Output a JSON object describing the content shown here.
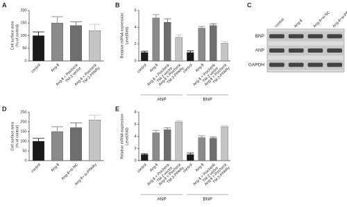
{
  "chart_data": [
    {
      "type": "bar",
      "panel": "A",
      "ylabel": [
        "Cell surface area",
        "(% of control)"
      ],
      "categories": [
        [
          "control"
        ],
        [
          "Ang-Ⅱ"
        ],
        [
          "Ang-Ⅱ + Psicheck",
          "TM-2 vector"
        ],
        [
          "Ang-Ⅱ + Psicheck",
          "TM-2-PPARγ"
        ]
      ],
      "colors": [
        "#1a1a1a",
        "#8a8a8a",
        "#6e6e6e",
        "#c4c4c4"
      ],
      "values": [
        100,
        150,
        140,
        120
      ],
      "errors": [
        15,
        25,
        15,
        25
      ],
      "ylim": [
        0,
        200
      ],
      "yticks": [
        0,
        50,
        100,
        150,
        200
      ]
    },
    {
      "type": "grouped-bar",
      "panel": "B",
      "ylabel": [
        "Relative mRNA expression",
        "Level(fold)"
      ],
      "categories": [
        [
          "control"
        ],
        [
          "Ang-Ⅱ"
        ],
        [
          "Ang-Ⅱ + Psicheck",
          "TM-2 vector"
        ],
        [
          "Ang-Ⅱ + Psicheck",
          "TM-2-PPARγ"
        ]
      ],
      "colors": [
        "#1a1a1a",
        "#8a8a8a",
        "#6e6e6e",
        "#c4c4c4"
      ],
      "series": [
        {
          "name": "ANP",
          "values": [
            1.0,
            5.1,
            4.6,
            2.8
          ],
          "errors": [
            0.15,
            0.4,
            0.4,
            0.3
          ]
        },
        {
          "name": "BNP",
          "values": [
            1.0,
            3.9,
            4.2,
            2.1
          ],
          "errors": [
            0.2,
            0.2,
            0.2,
            0.2
          ]
        }
      ],
      "ylim": [
        0,
        6
      ],
      "yticks": [
        0,
        2,
        4,
        6
      ]
    },
    {
      "type": "blot",
      "panel": "C",
      "columns": [
        "control",
        "Ang-Ⅱ",
        "Ang-Ⅱ+si-NC",
        "Ang-Ⅱ+si-PPARγ"
      ],
      "rows": [
        "BNP",
        "ANP",
        "GAPDH"
      ]
    },
    {
      "type": "bar",
      "panel": "D",
      "ylabel": [
        "Cell surface area",
        "(% of control)"
      ],
      "categories": [
        [
          "control"
        ],
        [
          "Ang-Ⅱ"
        ],
        [
          "Ang-Ⅱ+si-NC"
        ],
        [
          "Ang-Ⅱ+ si-PPARγ"
        ]
      ],
      "colors": [
        "#1a1a1a",
        "#8a8a8a",
        "#6e6e6e",
        "#c4c4c4"
      ],
      "values": [
        100,
        150,
        170,
        210
      ],
      "errors": [
        15,
        25,
        25,
        25
      ],
      "ylim": [
        0,
        250
      ],
      "yticks": [
        0,
        50,
        100,
        150,
        200,
        250
      ]
    },
    {
      "type": "grouped-bar",
      "panel": "E",
      "ylabel": [
        "Relative mRNA expression",
        "Level(fold)"
      ],
      "categories": [
        [
          "control"
        ],
        [
          "Ang-Ⅱ"
        ],
        [
          "Ang-Ⅱ + Psicheck",
          "TM-2 vector"
        ],
        [
          "Ang-Ⅱ + Psicheck",
          "TM-2-PPARγ"
        ]
      ],
      "colors": [
        "#1a1a1a",
        "#8a8a8a",
        "#6e6e6e",
        "#c4c4c4"
      ],
      "series": [
        {
          "name": "ANP",
          "values": [
            1.0,
            4.6,
            5.1,
            6.4
          ],
          "errors": [
            0.15,
            0.4,
            0.3,
            0.2
          ]
        },
        {
          "name": "BNP",
          "values": [
            1.0,
            3.8,
            3.7,
            5.6
          ],
          "errors": [
            0.25,
            0.3,
            0.2,
            0.2
          ]
        }
      ],
      "ylim": [
        0,
        8
      ],
      "yticks": [
        0,
        2,
        4,
        6,
        8
      ]
    }
  ]
}
